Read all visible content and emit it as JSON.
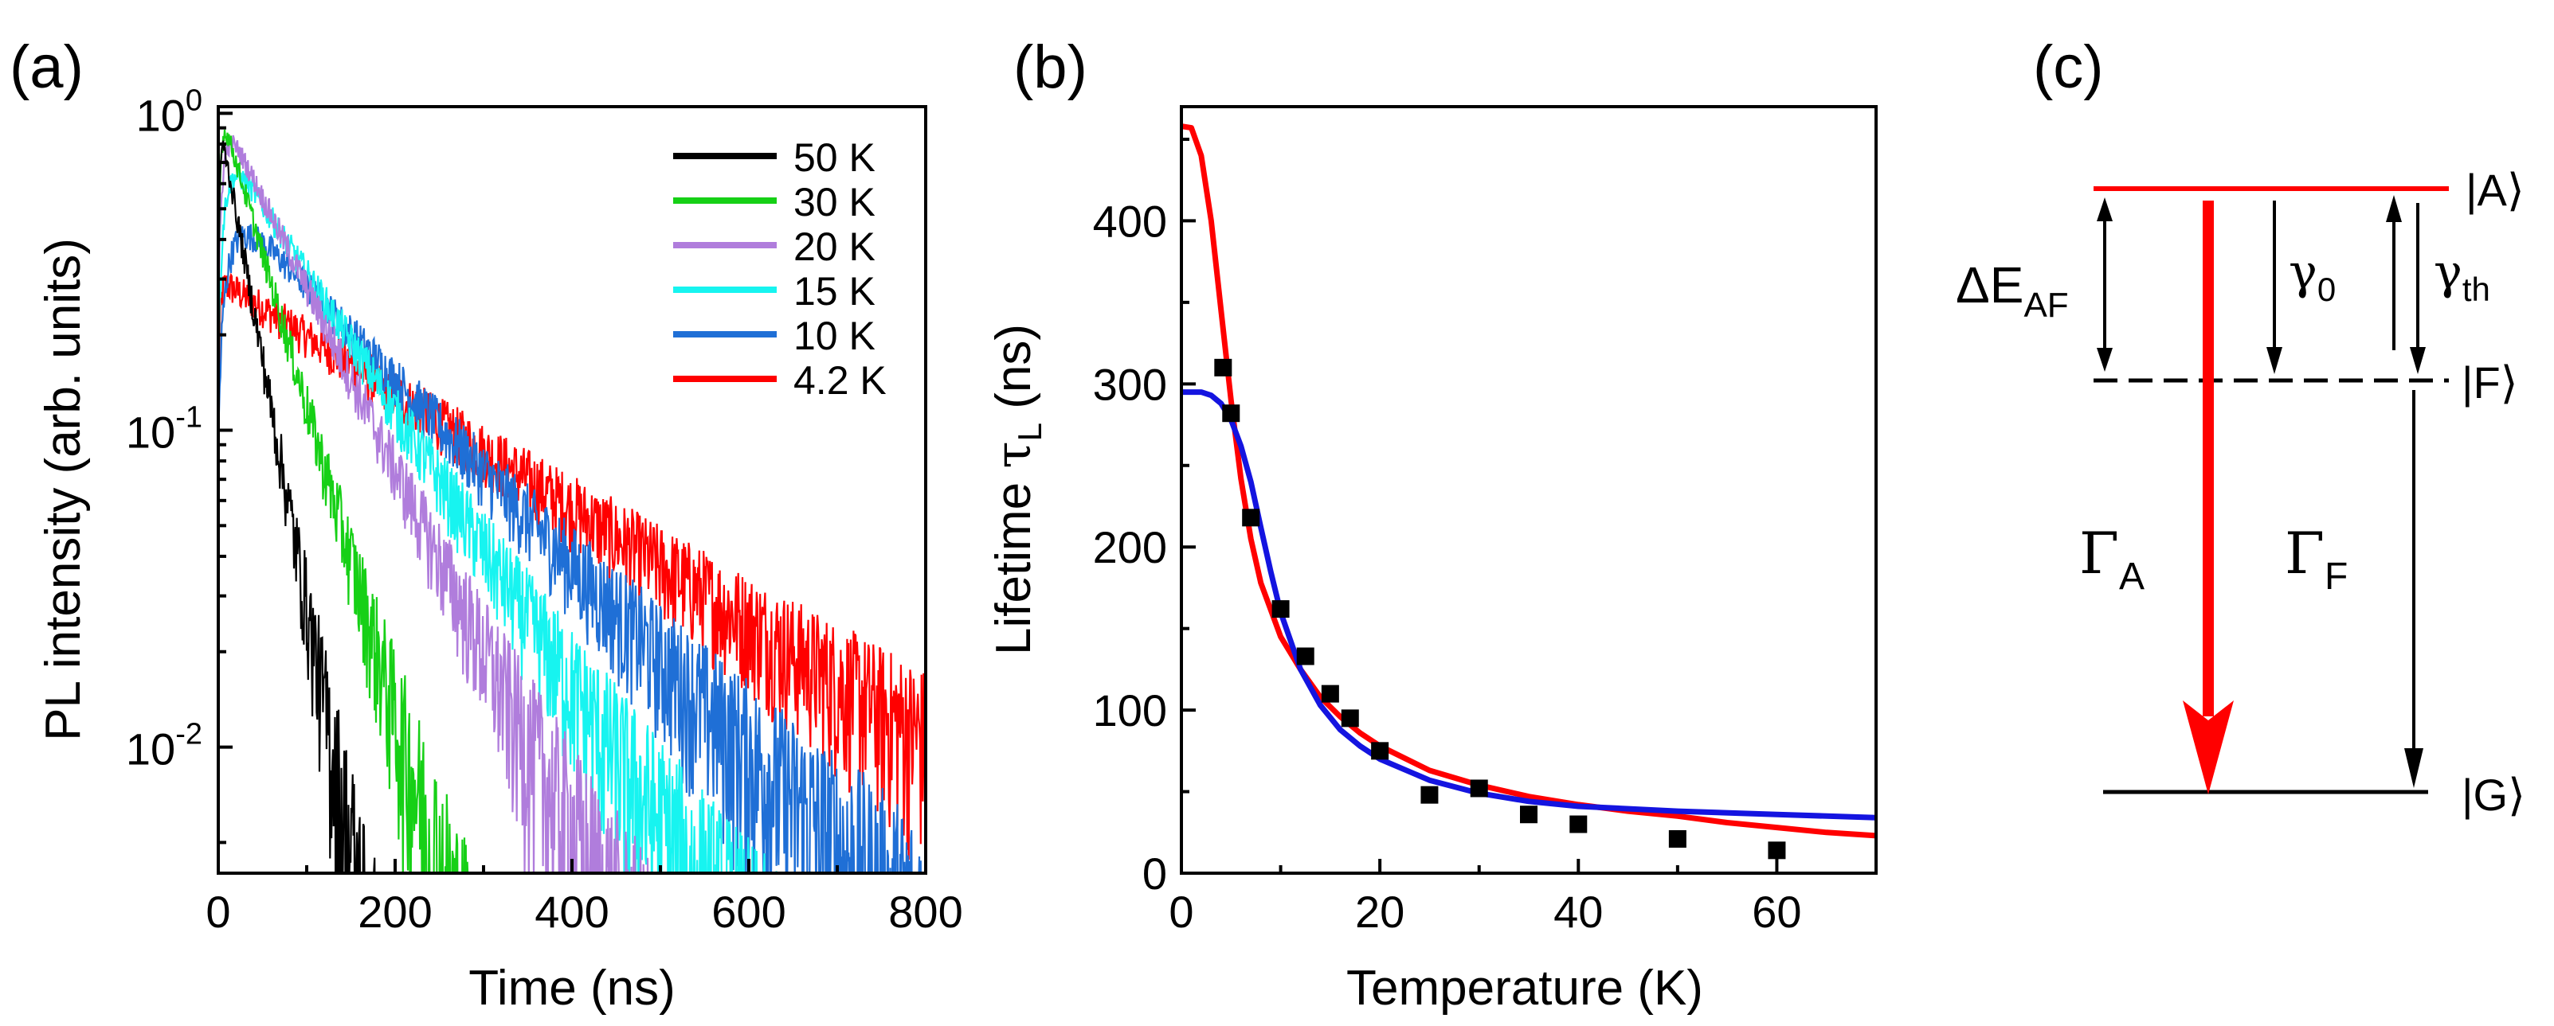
{
  "colors": {
    "black": "#000000",
    "green": "#16d016",
    "purple": "#b07ddc",
    "cyan": "#17f4f0",
    "blue": "#1f6fd6",
    "red": "#ff0000",
    "fit_blue": "#1414e0"
  },
  "chart_data": [
    {
      "panel": "(a)",
      "type": "line",
      "xlabel": "Time (ns)",
      "ylabel": "PL intensity (arb. units)",
      "yscale": "log",
      "xlim": [
        0,
        800
      ],
      "ylim": [
        0.004,
        1.05
      ],
      "xticks": [
        0,
        200,
        400,
        600,
        800
      ],
      "xtick_labels": [
        "0",
        "200",
        "400",
        "600",
        "800"
      ],
      "yticks": [
        {
          "base": "10",
          "exp": "0",
          "value": 1
        },
        {
          "base": "10",
          "exp": "-1",
          "value": 0.1
        },
        {
          "base": "10",
          "exp": "-2",
          "value": 0.01
        }
      ],
      "legend_position": "top-right",
      "series": [
        {
          "name": "4.2 K",
          "color": "#ff0000",
          "amplitude": 0.3,
          "lifetime_ns": 240,
          "rise_ns": 2,
          "noise_floor": 0.004
        },
        {
          "name": "10 K",
          "color": "#1f6fd6",
          "amplitude": 0.56,
          "lifetime_ns": 148,
          "rise_ns": 14,
          "noise_floor": 0.004
        },
        {
          "name": "15 K",
          "color": "#17f4f0",
          "amplitude": 0.85,
          "lifetime_ns": 100,
          "rise_ns": 9,
          "noise_floor": 0.004
        },
        {
          "name": "20 K",
          "color": "#b07ddc",
          "amplitude": 1.05,
          "lifetime_ns": 76,
          "rise_ns": 6,
          "noise_floor": 0.004
        },
        {
          "name": "30 K",
          "color": "#16d016",
          "amplitude": 1.1,
          "lifetime_ns": 45,
          "rise_ns": 3,
          "noise_floor": 0.004
        },
        {
          "name": "50 K",
          "color": "#000000",
          "amplitude": 1.0,
          "lifetime_ns": 28,
          "rise_ns": 2,
          "noise_floor": 0.004
        }
      ],
      "legend_order": [
        "50 K",
        "30 K",
        "20 K",
        "15 K",
        "10 K",
        "4.2 K"
      ]
    },
    {
      "panel": "(b)",
      "type": "scatter",
      "xlabel": "Temperature (K)",
      "ylabel_main": "Lifetime ",
      "ylabel_tau": "τ",
      "ylabel_sub": "L",
      "ylabel_unit": " (ns)",
      "xlim": [
        0,
        70
      ],
      "ylim": [
        0,
        470
      ],
      "xticks": [
        0,
        20,
        40,
        60
      ],
      "xtick_labels": [
        "0",
        "20",
        "40",
        "60"
      ],
      "yticks": [
        0,
        100,
        200,
        300,
        400
      ],
      "ytick_labels": [
        "0",
        "100",
        "200",
        "300",
        "400"
      ],
      "points": [
        {
          "T": 4.2,
          "tau": 310
        },
        {
          "T": 5,
          "tau": 282
        },
        {
          "T": 7,
          "tau": 218
        },
        {
          "T": 10,
          "tau": 162
        },
        {
          "T": 12.5,
          "tau": 133
        },
        {
          "T": 15,
          "tau": 110
        },
        {
          "T": 17,
          "tau": 95
        },
        {
          "T": 20,
          "tau": 75
        },
        {
          "T": 25,
          "tau": 48
        },
        {
          "T": 30,
          "tau": 52
        },
        {
          "T": 35,
          "tau": 36
        },
        {
          "T": 40,
          "tau": 30
        },
        {
          "T": 50,
          "tau": 21
        },
        {
          "T": 60,
          "tau": 14
        }
      ],
      "fits": [
        {
          "name": "red fit",
          "color": "#ff0000",
          "T": [
            0,
            1,
            2,
            3,
            4,
            5,
            6,
            7,
            8,
            10,
            12,
            14,
            16,
            18,
            20,
            25,
            30,
            35,
            40,
            45,
            50,
            55,
            60,
            65,
            70
          ],
          "tau": [
            458,
            457,
            440,
            400,
            345,
            290,
            242,
            205,
            178,
            145,
            125,
            108,
            96,
            86,
            78,
            63,
            54,
            47,
            42,
            38,
            35,
            31,
            28,
            25,
            23
          ]
        },
        {
          "name": "blue fit",
          "color": "#1414e0",
          "T": [
            0,
            2,
            3,
            4,
            5,
            6,
            7,
            8,
            9,
            10,
            12,
            14,
            16,
            18,
            20,
            25,
            30,
            35,
            40,
            50,
            60,
            70
          ],
          "tau": [
            295,
            295,
            293,
            288,
            278,
            262,
            240,
            212,
            185,
            160,
            125,
            103,
            88,
            78,
            70,
            57,
            49,
            44,
            41,
            38,
            36,
            34
          ]
        }
      ]
    },
    {
      "panel": "(c)",
      "type": "diagram",
      "levels": {
        "A": "|A⟩",
        "F": "|F⟩",
        "G": "|G⟩"
      },
      "labels": {
        "delta_main": "ΔE",
        "delta_sub": "AF",
        "gamma0_main": "γ",
        "gamma0_sub": "0",
        "gammath_main": "γ",
        "gammath_sub": "th",
        "GammaA_main": "Γ",
        "GammaA_sub": "A",
        "GammaF_main": "Γ",
        "GammaF_sub": "F"
      }
    }
  ]
}
